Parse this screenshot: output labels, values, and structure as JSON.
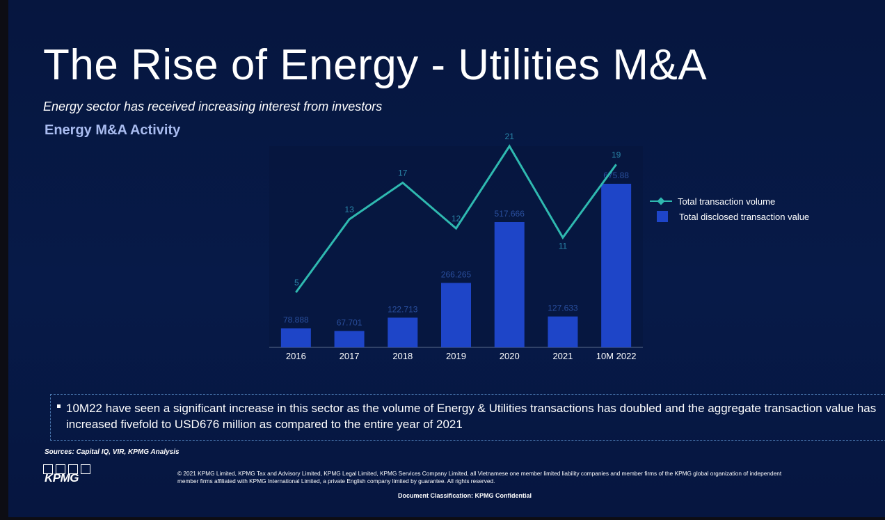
{
  "header": {
    "title": "The Rise of Energy - Utilities M&A",
    "subtitle": "Energy sector has received increasing interest from investors",
    "section_title": "Energy M&A Activity"
  },
  "chart_data": {
    "type": "bar",
    "categories": [
      "2016",
      "2017",
      "2018",
      "2019",
      "2020",
      "2021",
      "10M 2022"
    ],
    "series": [
      {
        "name": "Total disclosed transaction value",
        "type": "bar",
        "values": [
          78.888,
          67.701,
          122.713,
          266.265,
          517.666,
          127.633,
          675.88
        ],
        "labels": [
          "78.888",
          "67.701",
          "122.713",
          "266.265",
          "517.666",
          "127.633",
          "675.88"
        ],
        "color": "#1e45c8"
      },
      {
        "name": "Total transaction volume",
        "type": "line",
        "values": [
          5,
          13,
          17,
          12,
          21,
          11,
          19
        ],
        "labels": [
          "5",
          "13",
          "17",
          "12",
          "21",
          "11",
          "19"
        ],
        "color": "#2fb9b0"
      }
    ],
    "bar_ylim": [
      0,
      700
    ],
    "line_ylim": [
      0,
      21
    ],
    "legend_position": "right",
    "grid": false
  },
  "note": {
    "text": "10M22 have seen a significant increase in this sector as the volume of Energy & Utilities transactions has doubled and the aggregate transaction value has increased fivefold to USD676 million as compared to the entire year of 2021"
  },
  "footer": {
    "sources": "Sources: Capital IQ, VIR, KPMG Analysis",
    "logo": "KPMG",
    "copyright": "© 2021 KPMG Limited, KPMG Tax and Advisory Limited, KPMG Legal Limited, KPMG Services Company Limited, all Vietnamese one member limited liability companies and member firms of the KPMG global organization of independent member firms affiliated with KPMG International Limited, a private English company limited by guarantee. All rights reserved.",
    "classification": "Document Classification: KPMG Confidential"
  }
}
